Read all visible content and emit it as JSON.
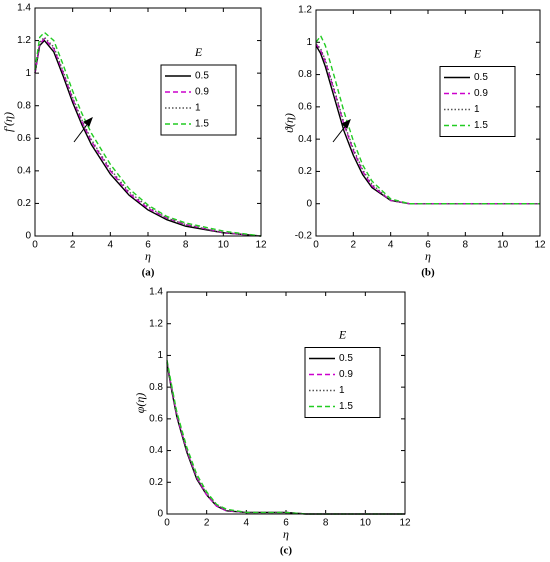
{
  "chart_data": [
    {
      "type": "line",
      "panel_label": "(a)",
      "xlabel": "η",
      "ylabel": "f′(η)",
      "legend_title": "E",
      "legend": "right",
      "x": [
        0,
        0.25,
        0.5,
        1,
        1.5,
        2,
        2.5,
        3,
        4,
        5,
        6,
        7,
        8,
        10,
        12
      ],
      "xlim": [
        0,
        12
      ],
      "xticks": [
        0,
        2,
        4,
        6,
        8,
        10,
        12
      ],
      "ylim": [
        0,
        1.4
      ],
      "yticks": [
        0,
        0.2,
        0.4,
        0.6,
        0.8,
        1,
        1.2,
        1.4
      ],
      "series": [
        {
          "name": "0.5",
          "color": "#000000",
          "style": "solid",
          "values": [
            1.0,
            1.17,
            1.2,
            1.13,
            0.98,
            0.82,
            0.68,
            0.56,
            0.38,
            0.25,
            0.16,
            0.1,
            0.06,
            0.02,
            0
          ]
        },
        {
          "name": "0.9",
          "color": "#cc00cc",
          "style": "dashed",
          "values": [
            1.0,
            1.18,
            1.21,
            1.15,
            1.0,
            0.84,
            0.7,
            0.58,
            0.4,
            0.26,
            0.17,
            0.11,
            0.07,
            0.02,
            0
          ]
        },
        {
          "name": "1",
          "color": "#555555",
          "style": "dotted",
          "values": [
            1.0,
            1.19,
            1.22,
            1.16,
            1.01,
            0.85,
            0.71,
            0.59,
            0.41,
            0.27,
            0.18,
            0.11,
            0.07,
            0.02,
            0
          ]
        },
        {
          "name": "1.5",
          "color": "#22cc22",
          "style": "dashed",
          "values": [
            1.02,
            1.22,
            1.25,
            1.2,
            1.05,
            0.89,
            0.75,
            0.63,
            0.44,
            0.29,
            0.19,
            0.12,
            0.08,
            0.03,
            0
          ]
        }
      ]
    },
    {
      "type": "line",
      "panel_label": "(b)",
      "xlabel": "η",
      "ylabel": "ϑ(η)",
      "legend_title": "E",
      "legend": "right",
      "x": [
        0,
        0.25,
        0.5,
        1,
        1.5,
        2,
        2.5,
        3,
        4,
        5,
        6,
        7,
        8,
        10,
        12
      ],
      "xlim": [
        0,
        12
      ],
      "xticks": [
        0,
        2,
        4,
        6,
        8,
        10,
        12
      ],
      "ylim": [
        -0.2,
        1.2
      ],
      "yticks": [
        -0.2,
        0,
        0.2,
        0.4,
        0.6,
        0.8,
        1,
        1.2
      ],
      "series": [
        {
          "name": "0.5",
          "color": "#000000",
          "style": "solid",
          "values": [
            0.98,
            0.93,
            0.85,
            0.65,
            0.45,
            0.3,
            0.18,
            0.1,
            0.02,
            0,
            0,
            0,
            0,
            0,
            0
          ]
        },
        {
          "name": "0.9",
          "color": "#cc00cc",
          "style": "dashed",
          "values": [
            0.99,
            0.95,
            0.88,
            0.69,
            0.49,
            0.33,
            0.2,
            0.11,
            0.02,
            0,
            0,
            0,
            0,
            0,
            0
          ]
        },
        {
          "name": "1",
          "color": "#555555",
          "style": "dotted",
          "values": [
            0.99,
            0.96,
            0.89,
            0.7,
            0.5,
            0.34,
            0.21,
            0.12,
            0.02,
            0,
            0,
            0,
            0,
            0,
            0
          ]
        },
        {
          "name": "1.5",
          "color": "#22cc22",
          "style": "dashed",
          "values": [
            1.0,
            1.04,
            0.98,
            0.78,
            0.57,
            0.39,
            0.24,
            0.14,
            0.03,
            0,
            0,
            0,
            0,
            0,
            0
          ]
        }
      ]
    },
    {
      "type": "line",
      "panel_label": "(c)",
      "xlabel": "η",
      "ylabel": "φ(η)",
      "legend_title": "E",
      "legend": "right",
      "x": [
        0,
        0.25,
        0.5,
        1,
        1.5,
        2,
        2.5,
        3,
        4,
        5,
        6,
        7,
        8,
        10,
        12
      ],
      "xlim": [
        0,
        12
      ],
      "xticks": [
        0,
        2,
        4,
        6,
        8,
        10,
        12
      ],
      "ylim": [
        0,
        1.4
      ],
      "yticks": [
        0,
        0.2,
        0.4,
        0.6,
        0.8,
        1,
        1.2,
        1.4
      ],
      "series": [
        {
          "name": "0.5",
          "color": "#000000",
          "style": "solid",
          "values": [
            0.95,
            0.77,
            0.61,
            0.39,
            0.22,
            0.12,
            0.05,
            0.02,
            0.01,
            0.01,
            0.01,
            0,
            0,
            0,
            0
          ]
        },
        {
          "name": "0.9",
          "color": "#cc00cc",
          "style": "dashed",
          "values": [
            0.96,
            0.78,
            0.62,
            0.4,
            0.23,
            0.12,
            0.05,
            0.02,
            0.01,
            0.01,
            0.01,
            0,
            0,
            0,
            0
          ]
        },
        {
          "name": "1",
          "color": "#555555",
          "style": "dotted",
          "values": [
            0.96,
            0.79,
            0.63,
            0.4,
            0.23,
            0.13,
            0.06,
            0.02,
            0.01,
            0.01,
            0.01,
            0,
            0,
            0,
            0
          ]
        },
        {
          "name": "1.5",
          "color": "#22cc22",
          "style": "dashed",
          "values": [
            0.97,
            0.8,
            0.64,
            0.42,
            0.25,
            0.14,
            0.06,
            0.03,
            0.01,
            0.01,
            0.01,
            0,
            0,
            0,
            0
          ]
        }
      ]
    }
  ]
}
